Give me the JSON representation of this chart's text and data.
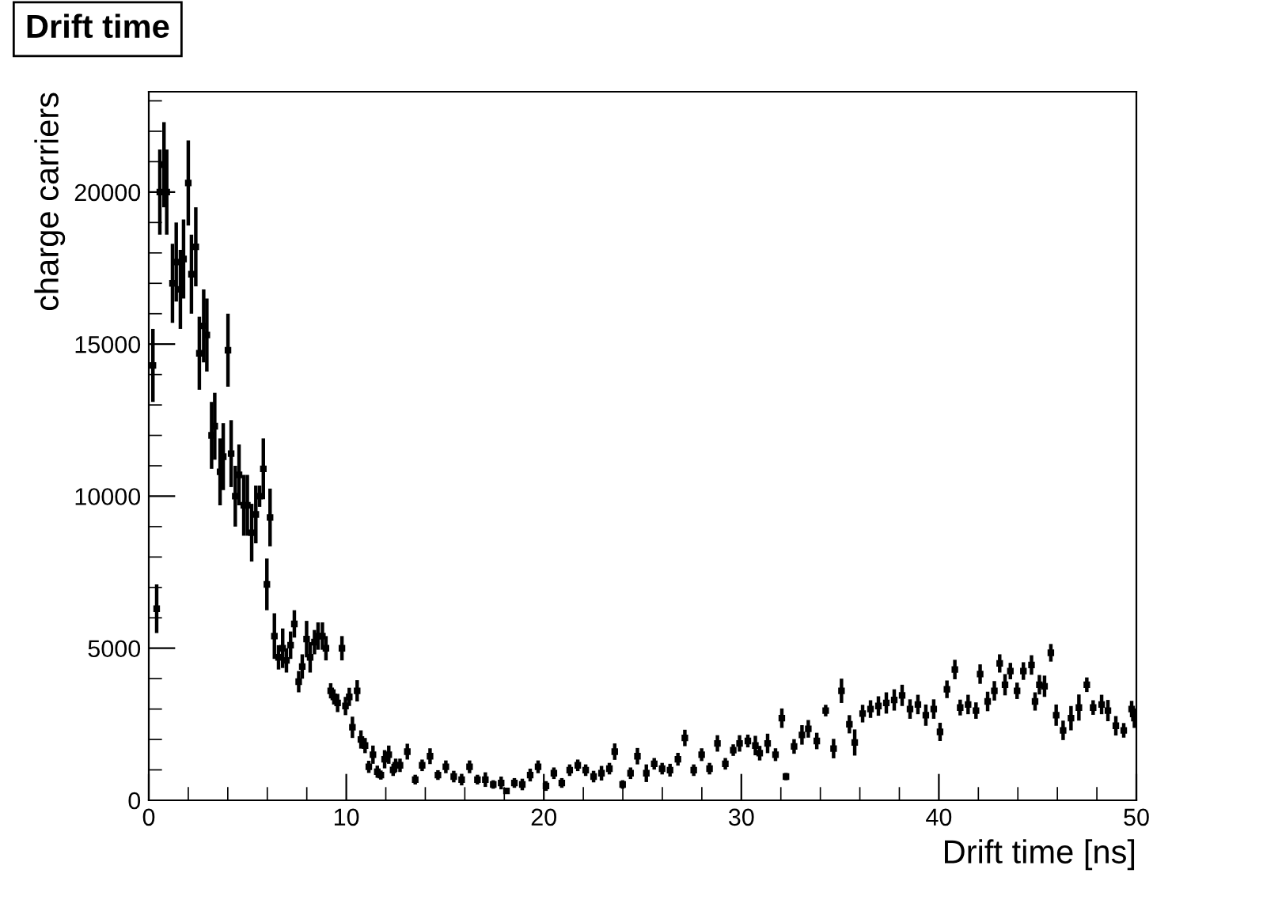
{
  "chart_data": {
    "type": "scatter",
    "title": "Drift time",
    "xlabel": "Drift time [ns]",
    "ylabel": "charge carriers",
    "marker": "square",
    "grid": false,
    "legend": false,
    "xlim": [
      0,
      50
    ],
    "ylim": [
      0,
      23300
    ],
    "xticks": [
      0,
      10,
      20,
      30,
      40,
      50
    ],
    "yticks": [
      0,
      5000,
      10000,
      15000,
      20000
    ],
    "series": [
      {
        "color": "#000000",
        "x": [
          0.21,
          0.4,
          0.56,
          0.77,
          0.91,
          1.2,
          1.39,
          1.6,
          1.76,
          2.0,
          2.16,
          2.38,
          2.56,
          2.78,
          2.94,
          3.18,
          3.34,
          3.61,
          3.77,
          4.01,
          4.17,
          4.38,
          4.57,
          4.81,
          4.99,
          5.21,
          5.42,
          5.61,
          5.8,
          5.98,
          6.14,
          6.36,
          6.57,
          6.78,
          6.97,
          7.18,
          7.37,
          7.59,
          7.77,
          7.99,
          8.17,
          8.39,
          8.57,
          8.79,
          8.97,
          9.21,
          9.37,
          9.56,
          9.78,
          9.96,
          10.15,
          10.31,
          10.55,
          10.74,
          10.95,
          11.14,
          11.35,
          11.57,
          11.75,
          11.94,
          12.15,
          12.37,
          12.5,
          12.72,
          13.09,
          13.49,
          13.84,
          14.24,
          14.64,
          15.04,
          15.44,
          15.84,
          16.24,
          16.64,
          17.04,
          17.44,
          17.84,
          18.11,
          18.51,
          18.91,
          19.31,
          19.71,
          20.11,
          20.51,
          20.91,
          21.31,
          21.72,
          22.12,
          22.52,
          22.92,
          23.32,
          23.59,
          23.99,
          24.39,
          24.74,
          25.19,
          25.59,
          25.99,
          26.39,
          26.79,
          27.14,
          27.59,
          27.99,
          28.39,
          28.79,
          29.19,
          29.59,
          29.91,
          30.33,
          30.71,
          30.93,
          31.33,
          31.73,
          32.05,
          32.26,
          32.67,
          33.07,
          33.39,
          33.82,
          34.27,
          34.67,
          35.07,
          35.47,
          35.74,
          36.14,
          36.54,
          36.94,
          37.34,
          37.74,
          38.14,
          38.54,
          38.94,
          39.34,
          39.74,
          40.06,
          40.41,
          40.81,
          41.08,
          41.48,
          41.88,
          42.09,
          42.47,
          42.81,
          43.08,
          43.35,
          43.62,
          43.96,
          44.28,
          44.69,
          44.87,
          45.09,
          45.35,
          45.67,
          45.94,
          46.29,
          46.69,
          47.09,
          47.49,
          47.81,
          48.24,
          48.56,
          48.96,
          49.36,
          49.76,
          49.9
        ],
        "values": [
          14300,
          6300,
          20000,
          20900,
          20000,
          17000,
          17700,
          16800,
          17800,
          20300,
          17300,
          18200,
          14700,
          15600,
          15300,
          12000,
          12300,
          10800,
          11300,
          14800,
          11400,
          10000,
          10700,
          9700,
          9700,
          8800,
          9400,
          10000,
          10900,
          7100,
          9300,
          5400,
          4700,
          5000,
          4600,
          5100,
          5800,
          3900,
          4400,
          5300,
          4700,
          5200,
          5400,
          5400,
          5000,
          3600,
          3400,
          3200,
          5000,
          3100,
          3400,
          2400,
          3600,
          2000,
          1800,
          1100,
          1500,
          940,
          830,
          1350,
          1500,
          1000,
          1150,
          1150,
          1600,
          680,
          1150,
          1450,
          830,
          1100,
          780,
          680,
          1100,
          680,
          680,
          520,
          570,
          310,
          570,
          520,
          830,
          1100,
          470,
          890,
          570,
          990,
          1150,
          990,
          780,
          890,
          1040,
          1600,
          520,
          890,
          1450,
          890,
          1200,
          1040,
          990,
          1350,
          2050,
          990,
          1500,
          1040,
          1870,
          1200,
          1650,
          1870,
          1950,
          1800,
          1550,
          1870,
          1500,
          2700,
          780,
          1770,
          2150,
          2350,
          1950,
          2950,
          1700,
          3600,
          2500,
          1900,
          2850,
          3000,
          3100,
          3200,
          3300,
          3450,
          3000,
          3150,
          2800,
          3000,
          2250,
          3650,
          4300,
          3050,
          3150,
          2950,
          4150,
          3250,
          3600,
          4500,
          3800,
          4250,
          3600,
          4250,
          4450,
          3250,
          3800,
          3750,
          4850,
          2800,
          2300,
          2700,
          3050,
          3800,
          3050,
          3150,
          2950,
          2450,
          2300,
          3000,
          2700
        ],
        "errors": [
          1200,
          800,
          1400,
          1400,
          1400,
          1300,
          1300,
          1300,
          1300,
          1400,
          1300,
          1300,
          1200,
          1200,
          1200,
          1100,
          1100,
          1100,
          1100,
          1200,
          1100,
          1000,
          1000,
          1000,
          1000,
          950,
          950,
          350,
          1000,
          850,
          950,
          750,
          400,
          650,
          400,
          450,
          450,
          350,
          400,
          600,
          500,
          400,
          450,
          450,
          400,
          250,
          250,
          300,
          400,
          300,
          300,
          350,
          350,
          300,
          250,
          200,
          300,
          200,
          150,
          300,
          300,
          200,
          220,
          220,
          260,
          160,
          190,
          260,
          160,
          210,
          190,
          190,
          210,
          160,
          240,
          140,
          210,
          100,
          160,
          190,
          210,
          210,
          160,
          190,
          160,
          190,
          190,
          190,
          190,
          240,
          190,
          270,
          140,
          190,
          270,
          290,
          190,
          190,
          210,
          210,
          270,
          190,
          210,
          190,
          270,
          190,
          190,
          270,
          210,
          320,
          240,
          320,
          210,
          320,
          120,
          240,
          320,
          290,
          270,
          190,
          320,
          400,
          300,
          430,
          290,
          290,
          320,
          350,
          350,
          350,
          320,
          320,
          350,
          320,
          300,
          290,
          320,
          260,
          320,
          270,
          320,
          320,
          320,
          300,
          350,
          270,
          270,
          290,
          320,
          300,
          320,
          350,
          290,
          350,
          320,
          400,
          430,
          240,
          240,
          320,
          350,
          320,
          240,
          270,
          320
        ]
      }
    ]
  }
}
